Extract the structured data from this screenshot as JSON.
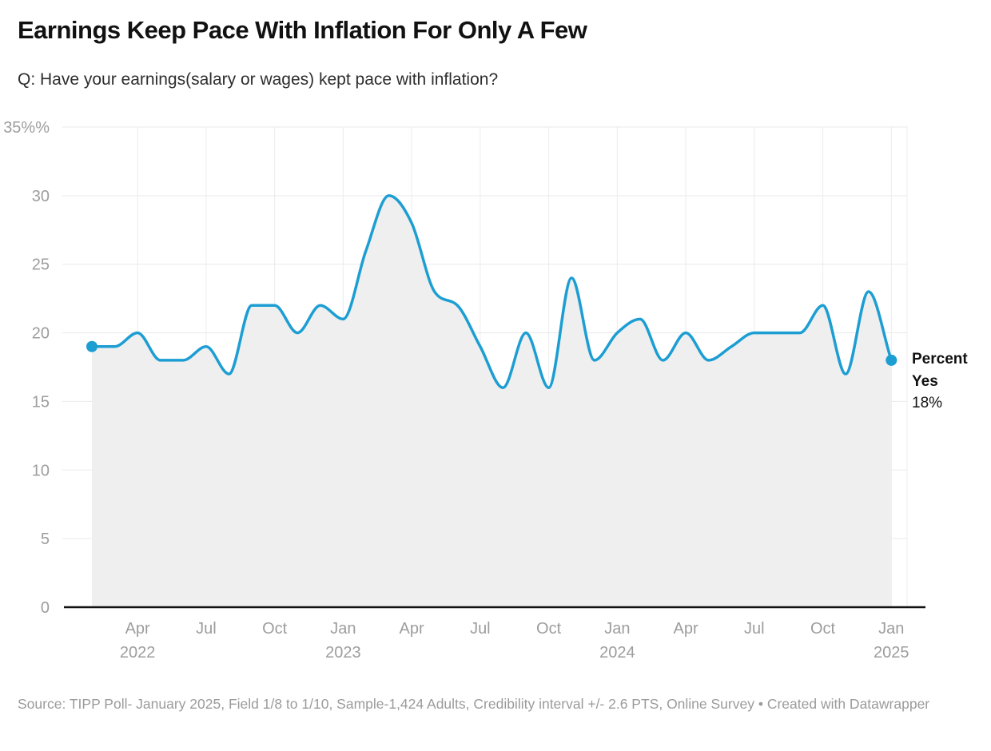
{
  "header": {
    "title": "Earnings Keep Pace With Inflation For Only A Few",
    "subtitle": "Q: Have your earnings(salary or wages) kept pace with inflation?"
  },
  "chart_data": {
    "type": "area",
    "title": "Earnings Keep Pace With Inflation For Only A Few",
    "subtitle": "Q: Have your earnings(salary or wages) kept pace with inflation?",
    "x": [
      "Feb 2022",
      "Mar 2022",
      "Apr 2022",
      "May 2022",
      "Jun 2022",
      "Jul 2022",
      "Aug 2022",
      "Sep 2022",
      "Oct 2022",
      "Nov 2022",
      "Dec 2022",
      "Jan 2023",
      "Feb 2023",
      "Mar 2023",
      "Apr 2023",
      "May 2023",
      "Jun 2023",
      "Jul 2023",
      "Aug 2023",
      "Sep 2023",
      "Oct 2023",
      "Nov 2023",
      "Dec 2023",
      "Jan 2024",
      "Feb 2024",
      "Mar 2024",
      "Apr 2024",
      "May 2024",
      "Jun 2024",
      "Jul 2024",
      "Aug 2024",
      "Sep 2024",
      "Oct 2024",
      "Nov 2024",
      "Dec 2024",
      "Jan 2025"
    ],
    "series": [
      {
        "name": "Percent Yes",
        "values": [
          19,
          19,
          20,
          18,
          18,
          19,
          17,
          22,
          22,
          20,
          22,
          21,
          26,
          30,
          28,
          23,
          22,
          19,
          16,
          20,
          16,
          24,
          18,
          20,
          21,
          18,
          20,
          18,
          19,
          20,
          20,
          20,
          22,
          17,
          23,
          18
        ]
      }
    ],
    "ylim": [
      0,
      35
    ],
    "grid": true,
    "legend_position": "end-of-line",
    "y_ticks": [
      0,
      5,
      10,
      15,
      20,
      25,
      30,
      35
    ],
    "y_tick_labels": [
      "0",
      "5",
      "10",
      "15",
      "20",
      "25",
      "30",
      "35%%"
    ],
    "x_ticks": [
      {
        "month_index": 2,
        "label": "Apr",
        "year": "2022"
      },
      {
        "month_index": 5,
        "label": "Jul",
        "year": ""
      },
      {
        "month_index": 8,
        "label": "Oct",
        "year": ""
      },
      {
        "month_index": 11,
        "label": "Jan",
        "year": "2023"
      },
      {
        "month_index": 14,
        "label": "Apr",
        "year": ""
      },
      {
        "month_index": 17,
        "label": "Jul",
        "year": ""
      },
      {
        "month_index": 20,
        "label": "Oct",
        "year": ""
      },
      {
        "month_index": 23,
        "label": "Jan",
        "year": "2024"
      },
      {
        "month_index": 26,
        "label": "Apr",
        "year": ""
      },
      {
        "month_index": 29,
        "label": "Jul",
        "year": ""
      },
      {
        "month_index": 32,
        "label": "Oct",
        "year": ""
      },
      {
        "month_index": 35,
        "label": "Jan",
        "year": "2025"
      }
    ],
    "line_color": "#1d9ed3",
    "area_color": "#efefef",
    "grid_color": "#e9e9e9",
    "axis_color": "#111111",
    "tick_label_color": "#9d9d9d",
    "start_value": 19,
    "end_label": {
      "name": "Percent Yes",
      "value": "18%"
    }
  },
  "footer": {
    "source": "Source: TIPP Poll- January 2025, Field 1/8 to 1/10, Sample-1,424 Adults, Credibility interval +/- 2.6 PTS, Online Survey • Created with Datawrapper"
  }
}
